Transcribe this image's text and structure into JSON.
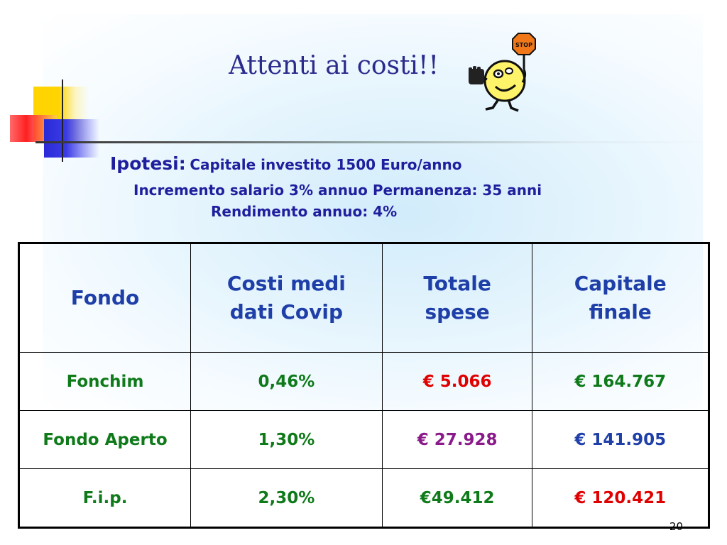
{
  "slide": {
    "title": "Attenti ai costi!!",
    "stop_sign_text": "STOP",
    "page_number": "20"
  },
  "hypothesis": {
    "label": "Ipotesi:",
    "line1": "Capitale investito 1500 Euro/anno",
    "line2": "Incremento salario 3% annuo  Permanenza: 35 anni",
    "line3": "Rendimento annuo: 4%"
  },
  "table": {
    "headers": [
      "Fondo",
      "Costi medi dati Covip",
      "Totale spese",
      "Capitale finale"
    ],
    "rows": [
      {
        "fondo": "Fonchim",
        "costi": "0,46%",
        "spese": "€ 5.066",
        "capitale": "€ 164.767",
        "colors": {
          "fondo": "#0f7a1a",
          "costi": "#0f7a1a",
          "spese": "#e00000",
          "capitale": "#0f7a1a"
        }
      },
      {
        "fondo": "Fondo Aperto",
        "costi": "1,30%",
        "spese": "€ 27.928",
        "capitale": "€ 141.905",
        "colors": {
          "fondo": "#0f7a1a",
          "costi": "#0f7a1a",
          "spese": "#8a1a8a",
          "capitale": "#1f3fa8"
        }
      },
      {
        "fondo": "F.i.p.",
        "costi": "2,30%",
        "spese": "€49.412",
        "capitale": "€ 120.421",
        "colors": {
          "fondo": "#0f7a1a",
          "costi": "#0f7a1a",
          "spese": "#0f7a1a",
          "capitale": "#e00000"
        }
      }
    ]
  },
  "colors": {
    "title": "#2b2b8c",
    "hypothesis": "#1f1f9e",
    "header": "#1f3fa8"
  }
}
